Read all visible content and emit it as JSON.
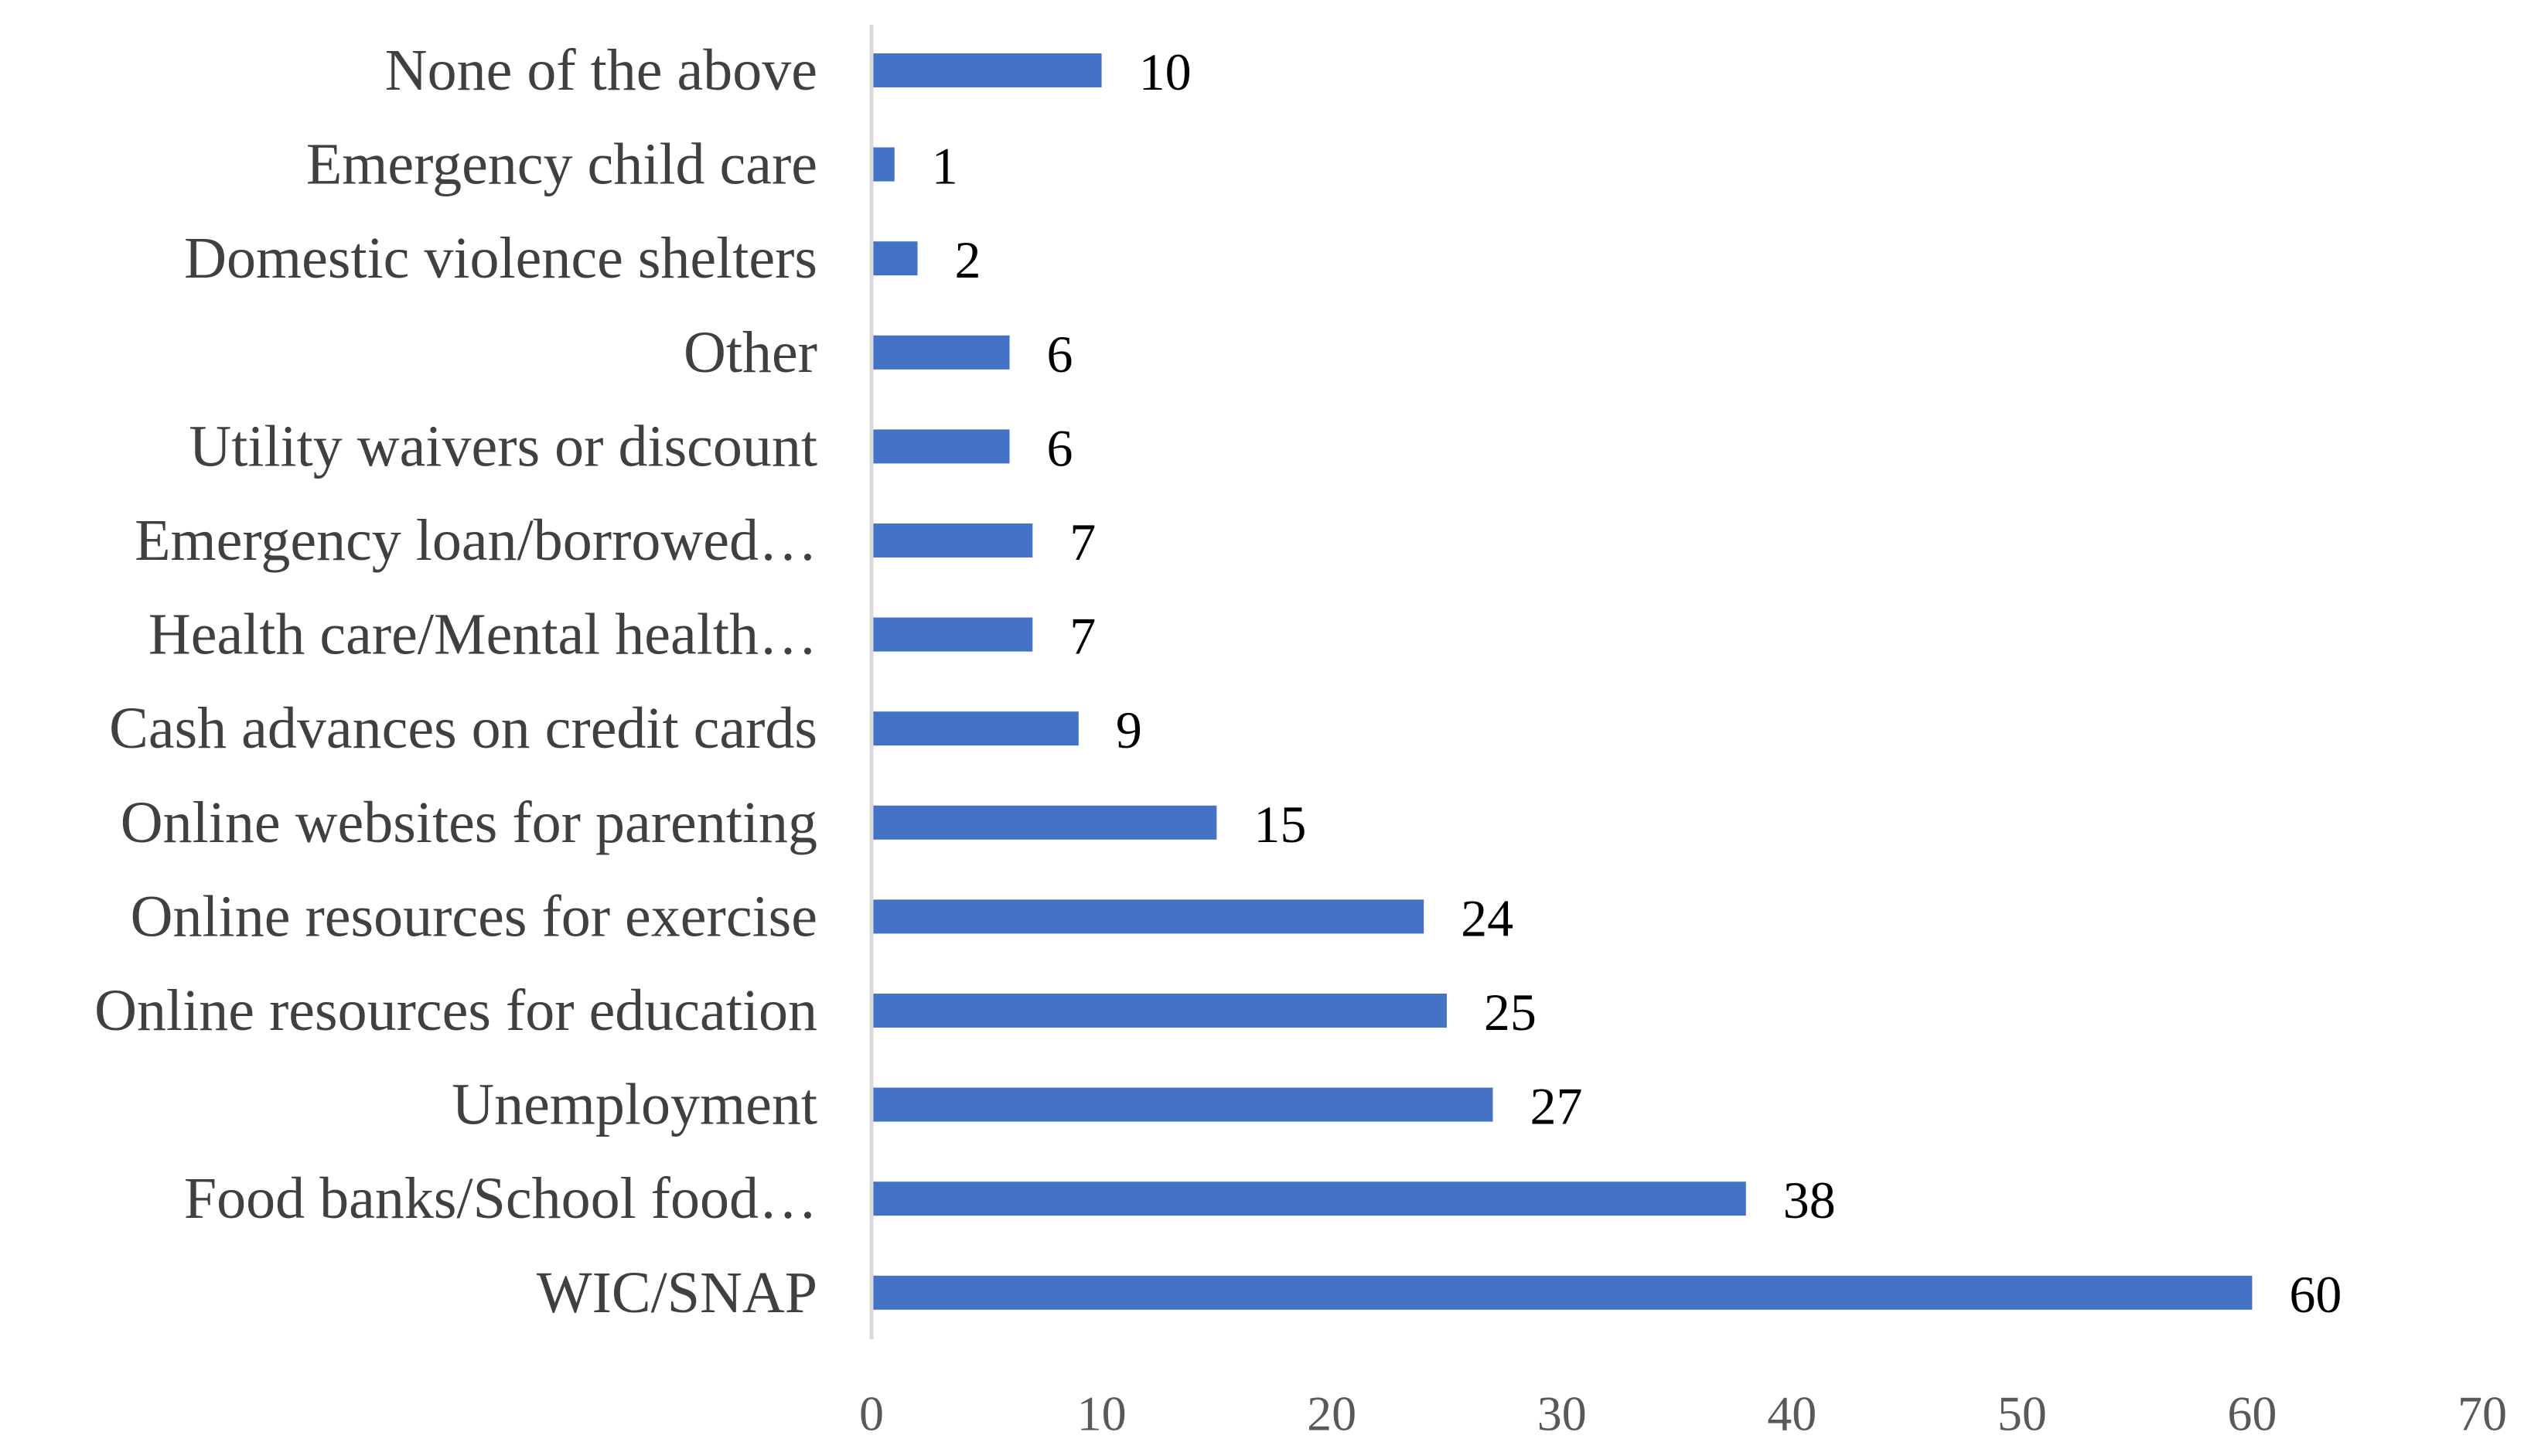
{
  "chart_data": {
    "type": "bar",
    "orientation": "horizontal",
    "title": "",
    "xlabel": "",
    "ylabel": "",
    "categories": [
      "WIC/SNAP",
      "Food banks/School food…",
      "Unemployment",
      "Online resources for education",
      "Online resources for exercise",
      "Online websites for parenting",
      "Cash advances on credit cards",
      "Health care/Mental health…",
      "Emergency loan/borrowed…",
      "Utility waivers or discount",
      "Other",
      "Domestic violence shelters",
      "Emergency child care",
      "None of the above"
    ],
    "values": [
      60,
      38,
      27,
      25,
      24,
      15,
      9,
      7,
      7,
      6,
      6,
      2,
      1,
      10
    ],
    "xlim": [
      0,
      70
    ],
    "xticks": [
      0,
      10,
      20,
      30,
      40,
      50,
      60,
      70
    ],
    "gridlines": false,
    "legend": "none",
    "bar_color": "#4472C4",
    "axis_color": "#D9D9D9"
  }
}
